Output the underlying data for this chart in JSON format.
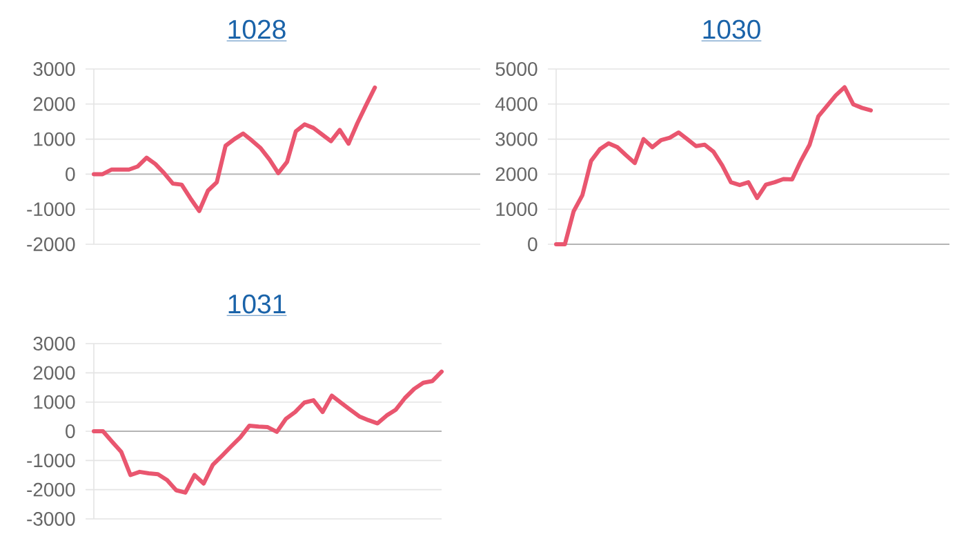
{
  "chart_data": [
    {
      "type": "line",
      "title": "1028",
      "categories": [
        null,
        null,
        null,
        null,
        null,
        null,
        null,
        null,
        null,
        null,
        null,
        null,
        null,
        null,
        null,
        null,
        null,
        null,
        null,
        null,
        null,
        null,
        null,
        null,
        null,
        null,
        null,
        null,
        null,
        null,
        null,
        null,
        null,
        null,
        null,
        null,
        null,
        null,
        null,
        null,
        null,
        null,
        null,
        null,
        null
      ],
      "values": [
        0,
        0,
        130,
        130,
        130,
        220,
        470,
        290,
        30,
        -270,
        -300,
        -690,
        -1050,
        -470,
        -230,
        810,
        1000,
        1160,
        960,
        740,
        420,
        30,
        350,
        1220,
        1420,
        1320,
        1130,
        940,
        1260,
        870,
        1450,
        1970,
        2470,
        null,
        null,
        null,
        null,
        null,
        null,
        null,
        null,
        null,
        null,
        null,
        null
      ],
      "color": "#e9566f",
      "ylim": [
        -2000,
        3000
      ],
      "yticks": [
        -2000,
        -1000,
        0,
        1000,
        2000,
        3000
      ],
      "grid": "y"
    },
    {
      "type": "line",
      "title": "1030",
      "categories": [
        null,
        null,
        null,
        null,
        null,
        null,
        null,
        null,
        null,
        null,
        null,
        null,
        null,
        null,
        null,
        null,
        null,
        null,
        null,
        null,
        null,
        null,
        null,
        null,
        null,
        null,
        null,
        null,
        null,
        null,
        null,
        null,
        null,
        null,
        null,
        null,
        null,
        null,
        null,
        null,
        null,
        null,
        null,
        null,
        null,
        null
      ],
      "values": [
        0,
        0,
        940,
        1400,
        2380,
        2710,
        2880,
        2770,
        2540,
        2320,
        3000,
        2770,
        2970,
        3040,
        3190,
        3000,
        2800,
        2840,
        2640,
        2250,
        1770,
        1690,
        1770,
        1320,
        1700,
        1770,
        1860,
        1850,
        2380,
        2840,
        3650,
        3950,
        4250,
        4480,
        3990,
        3890,
        3820,
        null,
        null,
        null,
        null,
        null,
        null,
        null,
        null,
        null
      ],
      "color": "#e9566f",
      "ylim": [
        0,
        5000
      ],
      "yticks": [
        0,
        1000,
        2000,
        3000,
        4000,
        5000
      ],
      "grid": "y"
    },
    {
      "type": "line",
      "title": "1031",
      "categories": [
        null,
        null,
        null,
        null,
        null,
        null,
        null,
        null,
        null,
        null,
        null,
        null,
        null,
        null,
        null,
        null,
        null,
        null,
        null,
        null,
        null,
        null,
        null,
        null,
        null,
        null,
        null,
        null,
        null,
        null,
        null,
        null,
        null,
        null,
        null,
        null,
        null,
        null,
        null
      ],
      "values": [
        0,
        0,
        -360,
        -710,
        -1500,
        -1390,
        -1440,
        -1470,
        -1670,
        -2020,
        -2100,
        -1500,
        -1790,
        -1150,
        -840,
        -520,
        -210,
        190,
        160,
        140,
        -20,
        430,
        660,
        980,
        1060,
        660,
        1220,
        980,
        740,
        510,
        380,
        270,
        540,
        740,
        1140,
        1450,
        1660,
        1720,
        2040
      ],
      "color": "#e9566f",
      "ylim": [
        -3000,
        3000
      ],
      "yticks": [
        -3000,
        -2000,
        -1000,
        0,
        1000,
        2000,
        3000
      ],
      "grid": "y"
    }
  ]
}
